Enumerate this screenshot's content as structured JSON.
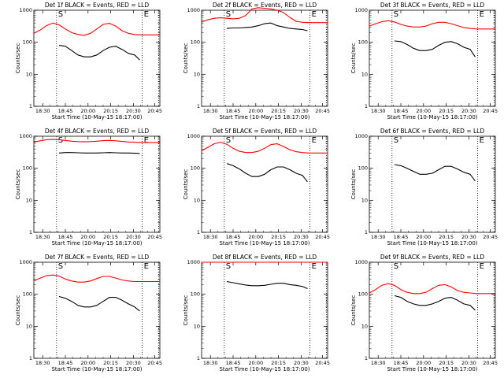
{
  "chart_data": [
    {
      "type": "line",
      "title": "Det 1f BLACK = Events, RED = LLD",
      "xlabel": "Start Time (10-May-15 18:17:00)",
      "ylabel": "Counts/sec",
      "yscale": "log",
      "ylim": [
        1,
        1000
      ],
      "x_ticks": [
        "18:30",
        "18:45",
        "20:00",
        "20:15",
        "20:30",
        "20:45"
      ],
      "y_ticks": [
        "1",
        "10",
        "100",
        "1000"
      ],
      "markers": [
        "S",
        "E"
      ],
      "series": [
        {
          "color": "#ff0000",
          "x": [
            0,
            0.05,
            0.1,
            0.15,
            0.2,
            0.25,
            0.3,
            0.35,
            0.4,
            0.45,
            0.5,
            0.55,
            0.6,
            0.65,
            0.7,
            0.75,
            0.8,
            0.85,
            0.9,
            0.95,
            1
          ],
          "values": [
            190,
            240,
            330,
            400,
            350,
            260,
            200,
            175,
            165,
            190,
            260,
            360,
            390,
            320,
            230,
            190,
            175,
            170,
            170,
            170,
            170
          ]
        },
        {
          "color": "#000000",
          "x": [
            0.2,
            0.25,
            0.3,
            0.35,
            0.4,
            0.45,
            0.5,
            0.55,
            0.6,
            0.65,
            0.7,
            0.75,
            0.8,
            0.84
          ],
          "values": [
            80,
            75,
            55,
            40,
            35,
            35,
            40,
            55,
            70,
            75,
            60,
            45,
            40,
            28
          ]
        }
      ]
    },
    {
      "type": "line",
      "title": "Det 2f BLACK = Events, RED = LLD",
      "xlabel": "Start Time (10-May-15 18:17:00)",
      "ylabel": "Counts/sec",
      "yscale": "log",
      "ylim": [
        1,
        1000
      ],
      "x_ticks": [
        "18:30",
        "18:45",
        "20:00",
        "20:15",
        "20:30",
        "20:45"
      ],
      "y_ticks": [
        "1",
        "10",
        "100",
        "1000"
      ],
      "markers": [
        "S",
        "E"
      ],
      "series": [
        {
          "color": "#ff0000",
          "x": [
            0,
            0.05,
            0.1,
            0.15,
            0.2,
            0.25,
            0.3,
            0.35,
            0.4,
            0.45,
            0.5,
            0.55,
            0.6,
            0.65,
            0.7,
            0.75,
            0.8,
            0.85,
            0.9,
            0.95,
            1
          ],
          "values": [
            430,
            500,
            560,
            580,
            560,
            540,
            560,
            680,
            1100,
            1200,
            1150,
            1100,
            1000,
            850,
            600,
            450,
            420,
            410,
            410,
            410,
            410
          ]
        },
        {
          "color": "#000000",
          "x": [
            0.2,
            0.25,
            0.3,
            0.35,
            0.4,
            0.45,
            0.5,
            0.55,
            0.6,
            0.65,
            0.7,
            0.75,
            0.8,
            0.84
          ],
          "values": [
            270,
            280,
            280,
            290,
            300,
            330,
            380,
            400,
            330,
            300,
            270,
            260,
            250,
            230
          ]
        }
      ]
    },
    {
      "type": "line",
      "title": "Det 3f BLACK = Events, RED = LLD",
      "xlabel": "Start Time (10-May-15 18:17:00)",
      "ylabel": "Counts/sec",
      "yscale": "log",
      "ylim": [
        1,
        1000
      ],
      "x_ticks": [
        "18:30",
        "18:45",
        "20:00",
        "20:15",
        "20:30",
        "20:45"
      ],
      "y_ticks": [
        "1",
        "10",
        "100",
        "1000"
      ],
      "markers": [
        "S",
        "E"
      ],
      "series": [
        {
          "color": "#ff0000",
          "x": [
            0,
            0.05,
            0.1,
            0.15,
            0.2,
            0.25,
            0.3,
            0.35,
            0.4,
            0.45,
            0.5,
            0.55,
            0.6,
            0.65,
            0.7,
            0.75,
            0.8,
            0.85,
            0.9,
            0.95,
            1
          ],
          "values": [
            320,
            380,
            440,
            470,
            430,
            360,
            320,
            300,
            300,
            320,
            380,
            420,
            420,
            380,
            330,
            290,
            270,
            260,
            260,
            260,
            260
          ]
        },
        {
          "color": "#000000",
          "x": [
            0.2,
            0.25,
            0.3,
            0.35,
            0.4,
            0.45,
            0.5,
            0.55,
            0.6,
            0.65,
            0.7,
            0.75,
            0.8,
            0.84
          ],
          "values": [
            110,
            105,
            85,
            65,
            55,
            55,
            60,
            80,
            100,
            105,
            90,
            70,
            60,
            35
          ]
        }
      ]
    },
    {
      "type": "line",
      "title": "Det 4f BLACK = Events, RED = LLD",
      "xlabel": "Start Time (10-May-15 18:17:00)",
      "ylabel": "Counts/sec",
      "yscale": "log",
      "ylim": [
        1,
        1000
      ],
      "x_ticks": [
        "18:30",
        "18:45",
        "20:00",
        "20:15",
        "20:30",
        "20:45"
      ],
      "y_ticks": [
        "1",
        "10",
        "100",
        "1000"
      ],
      "markers": [
        "S",
        "E"
      ],
      "series": [
        {
          "color": "#ff0000",
          "x": [
            0,
            0.05,
            0.1,
            0.15,
            0.2,
            0.25,
            0.3,
            0.35,
            0.4,
            0.45,
            0.5,
            0.55,
            0.6,
            0.65,
            0.7,
            0.75,
            0.8,
            0.85,
            0.9,
            0.95,
            1
          ],
          "values": [
            660,
            720,
            780,
            800,
            780,
            740,
            700,
            680,
            670,
            680,
            700,
            730,
            740,
            720,
            690,
            660,
            650,
            640,
            640,
            640,
            640
          ]
        },
        {
          "color": "#000000",
          "x": [
            0.2,
            0.25,
            0.3,
            0.35,
            0.4,
            0.45,
            0.5,
            0.55,
            0.6,
            0.65,
            0.7,
            0.75,
            0.8,
            0.84
          ],
          "values": [
            300,
            310,
            310,
            305,
            300,
            300,
            300,
            305,
            310,
            305,
            300,
            300,
            295,
            290
          ]
        }
      ]
    },
    {
      "type": "line",
      "title": "Det 5f BLACK = Events, RED = LLD",
      "xlabel": "Start Time (10-May-15 18:17:00)",
      "ylabel": "Counts/sec",
      "yscale": "log",
      "ylim": [
        1,
        1000
      ],
      "x_ticks": [
        "18:30",
        "18:45",
        "20:00",
        "20:15",
        "20:30",
        "20:45"
      ],
      "y_ticks": [
        "1",
        "10",
        "100",
        "1000"
      ],
      "markers": [
        "S",
        "E"
      ],
      "series": [
        {
          "color": "#ff0000",
          "x": [
            0,
            0.05,
            0.1,
            0.15,
            0.2,
            0.25,
            0.3,
            0.35,
            0.4,
            0.45,
            0.5,
            0.55,
            0.6,
            0.65,
            0.7,
            0.75,
            0.8,
            0.85,
            0.9,
            0.95,
            1
          ],
          "values": [
            350,
            450,
            580,
            650,
            560,
            420,
            340,
            310,
            310,
            340,
            420,
            550,
            580,
            480,
            380,
            330,
            310,
            300,
            300,
            300,
            300
          ]
        },
        {
          "color": "#000000",
          "x": [
            0.2,
            0.25,
            0.3,
            0.35,
            0.4,
            0.45,
            0.5,
            0.55,
            0.6,
            0.65,
            0.7,
            0.75,
            0.8,
            0.84
          ],
          "values": [
            140,
            120,
            95,
            70,
            55,
            55,
            65,
            90,
            110,
            110,
            90,
            70,
            60,
            38
          ]
        }
      ]
    },
    {
      "type": "line",
      "title": "Det 6f BLACK = Events, RED = LLD",
      "xlabel": "Start Time (10-May-15 18:17:00)",
      "ylabel": "Counts/sec",
      "yscale": "log",
      "ylim": [
        1,
        1000
      ],
      "x_ticks": [
        "18:30",
        "18:45",
        "20:00",
        "20:15",
        "20:30",
        "20:45"
      ],
      "y_ticks": [
        "1",
        "10",
        "100",
        "1000"
      ],
      "markers": [
        "S",
        "E"
      ],
      "series": [
        {
          "color": "#000000",
          "x": [
            0.2,
            0.25,
            0.3,
            0.35,
            0.4,
            0.45,
            0.5,
            0.55,
            0.6,
            0.65,
            0.7,
            0.75,
            0.8,
            0.84
          ],
          "values": [
            130,
            120,
            100,
            80,
            65,
            65,
            70,
            90,
            115,
            115,
            95,
            75,
            65,
            40
          ]
        }
      ]
    },
    {
      "type": "line",
      "title": "Det 7f BLACK = Events, RED = LLD",
      "xlabel": "Start Time (10-May-15 18:17:00)",
      "ylabel": "Counts/sec",
      "yscale": "log",
      "ylim": [
        1,
        1000
      ],
      "x_ticks": [
        "18:30",
        "18:45",
        "20:00",
        "20:15",
        "20:30",
        "20:45"
      ],
      "y_ticks": [
        "1",
        "10",
        "100",
        "1000"
      ],
      "markers": [
        "S",
        "E"
      ],
      "series": [
        {
          "color": "#ff0000",
          "x": [
            0,
            0.05,
            0.1,
            0.15,
            0.2,
            0.25,
            0.3,
            0.35,
            0.4,
            0.45,
            0.5,
            0.55,
            0.6,
            0.65,
            0.7,
            0.75,
            0.8,
            0.85,
            0.9,
            0.95,
            1
          ],
          "values": [
            260,
            320,
            380,
            400,
            370,
            300,
            260,
            240,
            240,
            260,
            310,
            360,
            360,
            320,
            280,
            260,
            250,
            250,
            250,
            250,
            250
          ]
        },
        {
          "color": "#000000",
          "x": [
            0.2,
            0.25,
            0.3,
            0.35,
            0.4,
            0.45,
            0.5,
            0.55,
            0.6,
            0.65,
            0.7,
            0.75,
            0.8,
            0.84
          ],
          "values": [
            85,
            75,
            60,
            45,
            40,
            40,
            45,
            60,
            80,
            80,
            65,
            50,
            40,
            30
          ]
        }
      ]
    },
    {
      "type": "line",
      "title": "Det 8f BLACK = Events, RED = LLD",
      "xlabel": "Start Time (10-May-15 18:17:00)",
      "ylabel": "Counts/sec",
      "yscale": "log",
      "ylim": [
        1,
        1000
      ],
      "x_ticks": [
        "18:30",
        "18:45",
        "20:00",
        "20:15",
        "20:30",
        "20:45"
      ],
      "y_ticks": [
        "1",
        "10",
        "100",
        "1000"
      ],
      "markers": [
        "S",
        "E"
      ],
      "series": [
        {
          "color": "#ff0000",
          "x": [
            0,
            0.25,
            0.5,
            0.75,
            1
          ],
          "values": [
            1000,
            1000,
            1000,
            1000,
            1000
          ]
        },
        {
          "color": "#000000",
          "x": [
            0.2,
            0.25,
            0.3,
            0.35,
            0.4,
            0.45,
            0.5,
            0.55,
            0.6,
            0.65,
            0.7,
            0.75,
            0.8,
            0.84
          ],
          "values": [
            250,
            230,
            210,
            195,
            185,
            185,
            190,
            205,
            220,
            220,
            200,
            190,
            175,
            150
          ]
        }
      ]
    },
    {
      "type": "line",
      "title": "Det 9f BLACK = Events, RED = LLD",
      "xlabel": "Start Time (10-May-15 18:17:00)",
      "ylabel": "Counts/sec",
      "yscale": "log",
      "ylim": [
        1,
        1000
      ],
      "x_ticks": [
        "18:30",
        "18:45",
        "20:00",
        "20:15",
        "20:30",
        "20:45"
      ],
      "y_ticks": [
        "1",
        "10",
        "100",
        "1000"
      ],
      "markers": [
        "S",
        "E"
      ],
      "series": [
        {
          "color": "#ff0000",
          "x": [
            0,
            0.05,
            0.1,
            0.15,
            0.2,
            0.25,
            0.3,
            0.35,
            0.4,
            0.45,
            0.5,
            0.55,
            0.6,
            0.65,
            0.7,
            0.75,
            0.8,
            0.85,
            0.9,
            0.95,
            1
          ],
          "values": [
            110,
            140,
            190,
            215,
            190,
            140,
            115,
            105,
            105,
            115,
            150,
            190,
            200,
            170,
            130,
            115,
            110,
            105,
            105,
            105,
            105
          ]
        },
        {
          "color": "#000000",
          "x": [
            0.2,
            0.25,
            0.3,
            0.35,
            0.4,
            0.45,
            0.5,
            0.55,
            0.6,
            0.65,
            0.7,
            0.75,
            0.8,
            0.84
          ],
          "values": [
            90,
            80,
            60,
            50,
            45,
            45,
            50,
            60,
            75,
            80,
            65,
            50,
            45,
            32
          ]
        }
      ]
    }
  ]
}
